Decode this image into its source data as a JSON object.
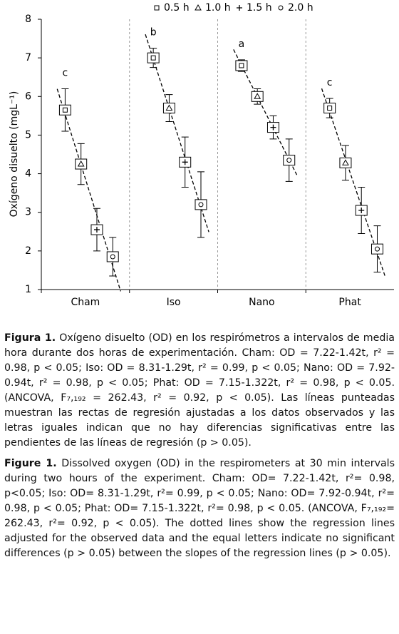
{
  "chart_data": {
    "type": "errorbar",
    "ylabel": "Oxígeno disuelto (mgL⁻¹)",
    "categories": [
      "Cham",
      "Iso",
      "Nano",
      "Phat"
    ],
    "letters": [
      "c",
      "b",
      "a",
      "c"
    ],
    "series": [
      {
        "name": "0.5 h",
        "marker": "square",
        "color": "#000000",
        "values": [
          5.65,
          7.0,
          6.8,
          5.7
        ],
        "errors": [
          0.55,
          0.25,
          0.15,
          0.25
        ]
      },
      {
        "name": "1.0 h",
        "marker": "triangle",
        "color": "#000000",
        "values": [
          4.25,
          5.7,
          6.0,
          4.28
        ],
        "errors": [
          0.53,
          0.35,
          0.2,
          0.45
        ]
      },
      {
        "name": "1.5 h",
        "marker": "plus",
        "color": "#000000",
        "values": [
          2.55,
          4.3,
          5.2,
          3.05
        ],
        "errors": [
          0.55,
          0.65,
          0.3,
          0.6
        ]
      },
      {
        "name": "2.0 h",
        "marker": "circle",
        "color": "#000000",
        "values": [
          1.85,
          3.2,
          4.35,
          2.05
        ],
        "errors": [
          0.5,
          0.85,
          0.55,
          0.6
        ]
      }
    ],
    "ylim": [
      1,
      8
    ],
    "yticks": [
      1,
      2,
      3,
      4,
      5,
      6,
      7,
      8
    ],
    "legend": "top",
    "trend_lines": true
  },
  "caption_es": {
    "label": "Figura 1.",
    "text": "Oxígeno disuelto (OD) en los respirómetros a intervalos de media hora durante dos horas de experimentación. Cham: OD = 7.22-1.42t, r² = 0.98, p < 0.05; Iso: OD = 8.31-1.29t, r² = 0.99, p < 0.05; Nano: OD = 7.92-0.94t, r² = 0.98, p < 0.05; Phat: OD = 7.15-1.322t, r² = 0.98, p < 0.05. (ANCOVA, F₇,₁₉₂ = 262.43, r² = 0.92, p < 0.05). Las líneas punteadas muestran las rectas de regresión ajustadas a los datos observados y las letras iguales indican que no hay diferencias significativas entre las pendientes de las líneas de regresión (p > 0.05)."
  },
  "caption_en": {
    "label": "Figure 1.",
    "text": "Dissolved oxygen (OD) in the respirometers at 30 min intervals during two hours of the experiment. Cham: OD= 7.22-1.42t, r²= 0.98, p<0.05; Iso: OD= 8.31-1.29t, r²= 0.99, p < 0.05; Nano: OD= 7.92-0.94t, r²= 0.98, p < 0.05; Phat: OD= 7.15-1.322t, r²= 0.98, p < 0.05. (ANCOVA, F₇,₁₉₂= 262.43, r²= 0.92, p < 0.05). The dotted lines show the regression lines adjusted for the observed data and the equal letters indicate no significant differences (p > 0.05) between the slopes of the regression lines (p > 0.05)."
  }
}
